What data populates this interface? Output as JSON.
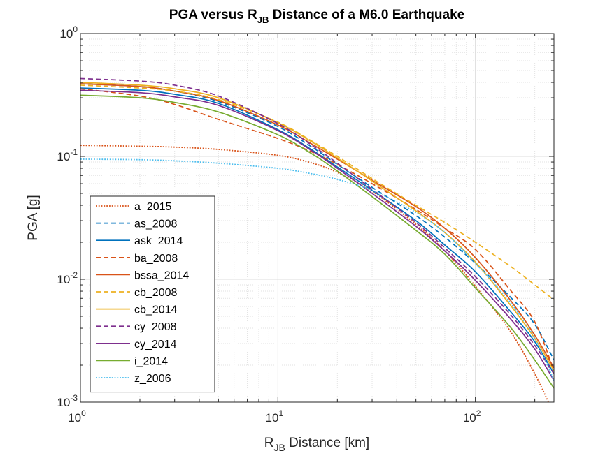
{
  "chart_data": {
    "type": "line",
    "title": {
      "main": "PGA versus R",
      "sub": "JB",
      "rest": " Distance of a M6.0 Earthquake"
    },
    "xlabel": {
      "main": "R",
      "sub": "JB",
      "rest": " Distance [km]"
    },
    "ylabel": "PGA [g]",
    "xscale": "log",
    "yscale": "log",
    "xlim": [
      1,
      250
    ],
    "ylim": [
      0.001,
      1
    ],
    "grid": true,
    "minor_grid": true,
    "legend_position": "bottom-left",
    "x_ticks": [
      {
        "value": 1,
        "base": "10",
        "exp": "0"
      },
      {
        "value": 10,
        "base": "10",
        "exp": "1"
      },
      {
        "value": 100,
        "base": "10",
        "exp": "2"
      }
    ],
    "y_ticks": [
      {
        "value": 0.001,
        "base": "10",
        "exp": "-3"
      },
      {
        "value": 0.01,
        "base": "10",
        "exp": "-2"
      },
      {
        "value": 0.1,
        "base": "10",
        "exp": "-1"
      },
      {
        "value": 1,
        "base": "10",
        "exp": "0"
      }
    ],
    "series": [
      {
        "name": "a_2015",
        "color": "#d95319",
        "dash": "dotted",
        "x": [
          1,
          2,
          3,
          5,
          10,
          15,
          20,
          30,
          50,
          70,
          100,
          150,
          200,
          250
        ],
        "y": [
          0.123,
          0.121,
          0.119,
          0.114,
          0.102,
          0.088,
          0.074,
          0.052,
          0.028,
          0.017,
          0.0088,
          0.0038,
          0.0017,
          0.0008
        ]
      },
      {
        "name": "as_2008",
        "color": "#0072bd",
        "dash": "dashed",
        "x": [
          1,
          2,
          3,
          5,
          10,
          15,
          20,
          30,
          50,
          70,
          100,
          150,
          200,
          250
        ],
        "y": [
          0.39,
          0.37,
          0.34,
          0.28,
          0.175,
          0.118,
          0.086,
          0.056,
          0.033,
          0.022,
          0.0135,
          0.0072,
          0.0043,
          0.0022
        ]
      },
      {
        "name": "ask_2014",
        "color": "#0072bd",
        "dash": "solid",
        "x": [
          1,
          2,
          3,
          5,
          10,
          15,
          20,
          30,
          50,
          70,
          100,
          150,
          200,
          250
        ],
        "y": [
          0.36,
          0.345,
          0.32,
          0.27,
          0.165,
          0.112,
          0.082,
          0.053,
          0.03,
          0.019,
          0.0115,
          0.0055,
          0.0031,
          0.0017
        ]
      },
      {
        "name": "ba_2008",
        "color": "#d95319",
        "dash": "dashed",
        "x": [
          1,
          2,
          3,
          5,
          10,
          15,
          20,
          30,
          50,
          70,
          100,
          150,
          200,
          250
        ],
        "y": [
          0.355,
          0.31,
          0.265,
          0.2,
          0.14,
          0.108,
          0.086,
          0.06,
          0.037,
          0.026,
          0.0175,
          0.0082,
          0.0045,
          0.0018
        ]
      },
      {
        "name": "bssa_2014",
        "color": "#d95319",
        "dash": "solid",
        "x": [
          1,
          2,
          3,
          5,
          10,
          15,
          20,
          30,
          50,
          70,
          100,
          150,
          200,
          250
        ],
        "y": [
          0.39,
          0.37,
          0.34,
          0.285,
          0.18,
          0.125,
          0.095,
          0.064,
          0.039,
          0.026,
          0.015,
          0.0068,
          0.0035,
          0.0019
        ]
      },
      {
        "name": "cb_2008",
        "color": "#edb120",
        "dash": "dashed",
        "x": [
          1,
          2,
          3,
          5,
          10,
          15,
          20,
          30,
          50,
          70,
          100,
          150,
          200,
          250
        ],
        "y": [
          0.38,
          0.36,
          0.34,
          0.29,
          0.19,
          0.132,
          0.1,
          0.066,
          0.04,
          0.029,
          0.02,
          0.0128,
          0.009,
          0.0068
        ]
      },
      {
        "name": "cb_2014",
        "color": "#edb120",
        "dash": "solid",
        "x": [
          1,
          2,
          3,
          5,
          10,
          15,
          20,
          30,
          50,
          70,
          100,
          150,
          200,
          250
        ],
        "y": [
          0.4,
          0.38,
          0.355,
          0.3,
          0.188,
          0.13,
          0.097,
          0.063,
          0.036,
          0.024,
          0.0138,
          0.0062,
          0.0033,
          0.0018
        ]
      },
      {
        "name": "cy_2008",
        "color": "#7e2f8e",
        "dash": "dashed",
        "x": [
          1,
          2,
          3,
          5,
          10,
          15,
          20,
          30,
          50,
          70,
          100,
          150,
          200,
          250
        ],
        "y": [
          0.43,
          0.41,
          0.38,
          0.31,
          0.185,
          0.122,
          0.088,
          0.054,
          0.029,
          0.018,
          0.0105,
          0.0052,
          0.0029,
          0.0017
        ]
      },
      {
        "name": "cy_2014",
        "color": "#7e2f8e",
        "dash": "solid",
        "x": [
          1,
          2,
          3,
          5,
          10,
          15,
          20,
          30,
          50,
          70,
          100,
          150,
          200,
          250
        ],
        "y": [
          0.345,
          0.33,
          0.305,
          0.26,
          0.162,
          0.11,
          0.08,
          0.05,
          0.027,
          0.017,
          0.0098,
          0.0048,
          0.0027,
          0.0015
        ]
      },
      {
        "name": "i_2014",
        "color": "#77ac30",
        "dash": "solid",
        "x": [
          1,
          2,
          3,
          5,
          10,
          15,
          20,
          30,
          50,
          70,
          100,
          150,
          200,
          250
        ],
        "y": [
          0.315,
          0.3,
          0.275,
          0.23,
          0.15,
          0.104,
          0.076,
          0.047,
          0.025,
          0.016,
          0.0085,
          0.0041,
          0.0022,
          0.0013
        ]
      },
      {
        "name": "z_2006",
        "color": "#4dbeee",
        "dash": "dotted",
        "x": [
          1,
          2,
          3,
          5,
          10,
          15,
          20,
          30,
          50,
          70,
          100,
          150,
          200,
          250
        ],
        "y": [
          0.095,
          0.094,
          0.092,
          0.088,
          0.08,
          0.072,
          0.065,
          0.053,
          0.035,
          0.024,
          0.0135,
          0.0065,
          0.0033,
          0.0015
        ]
      }
    ]
  }
}
